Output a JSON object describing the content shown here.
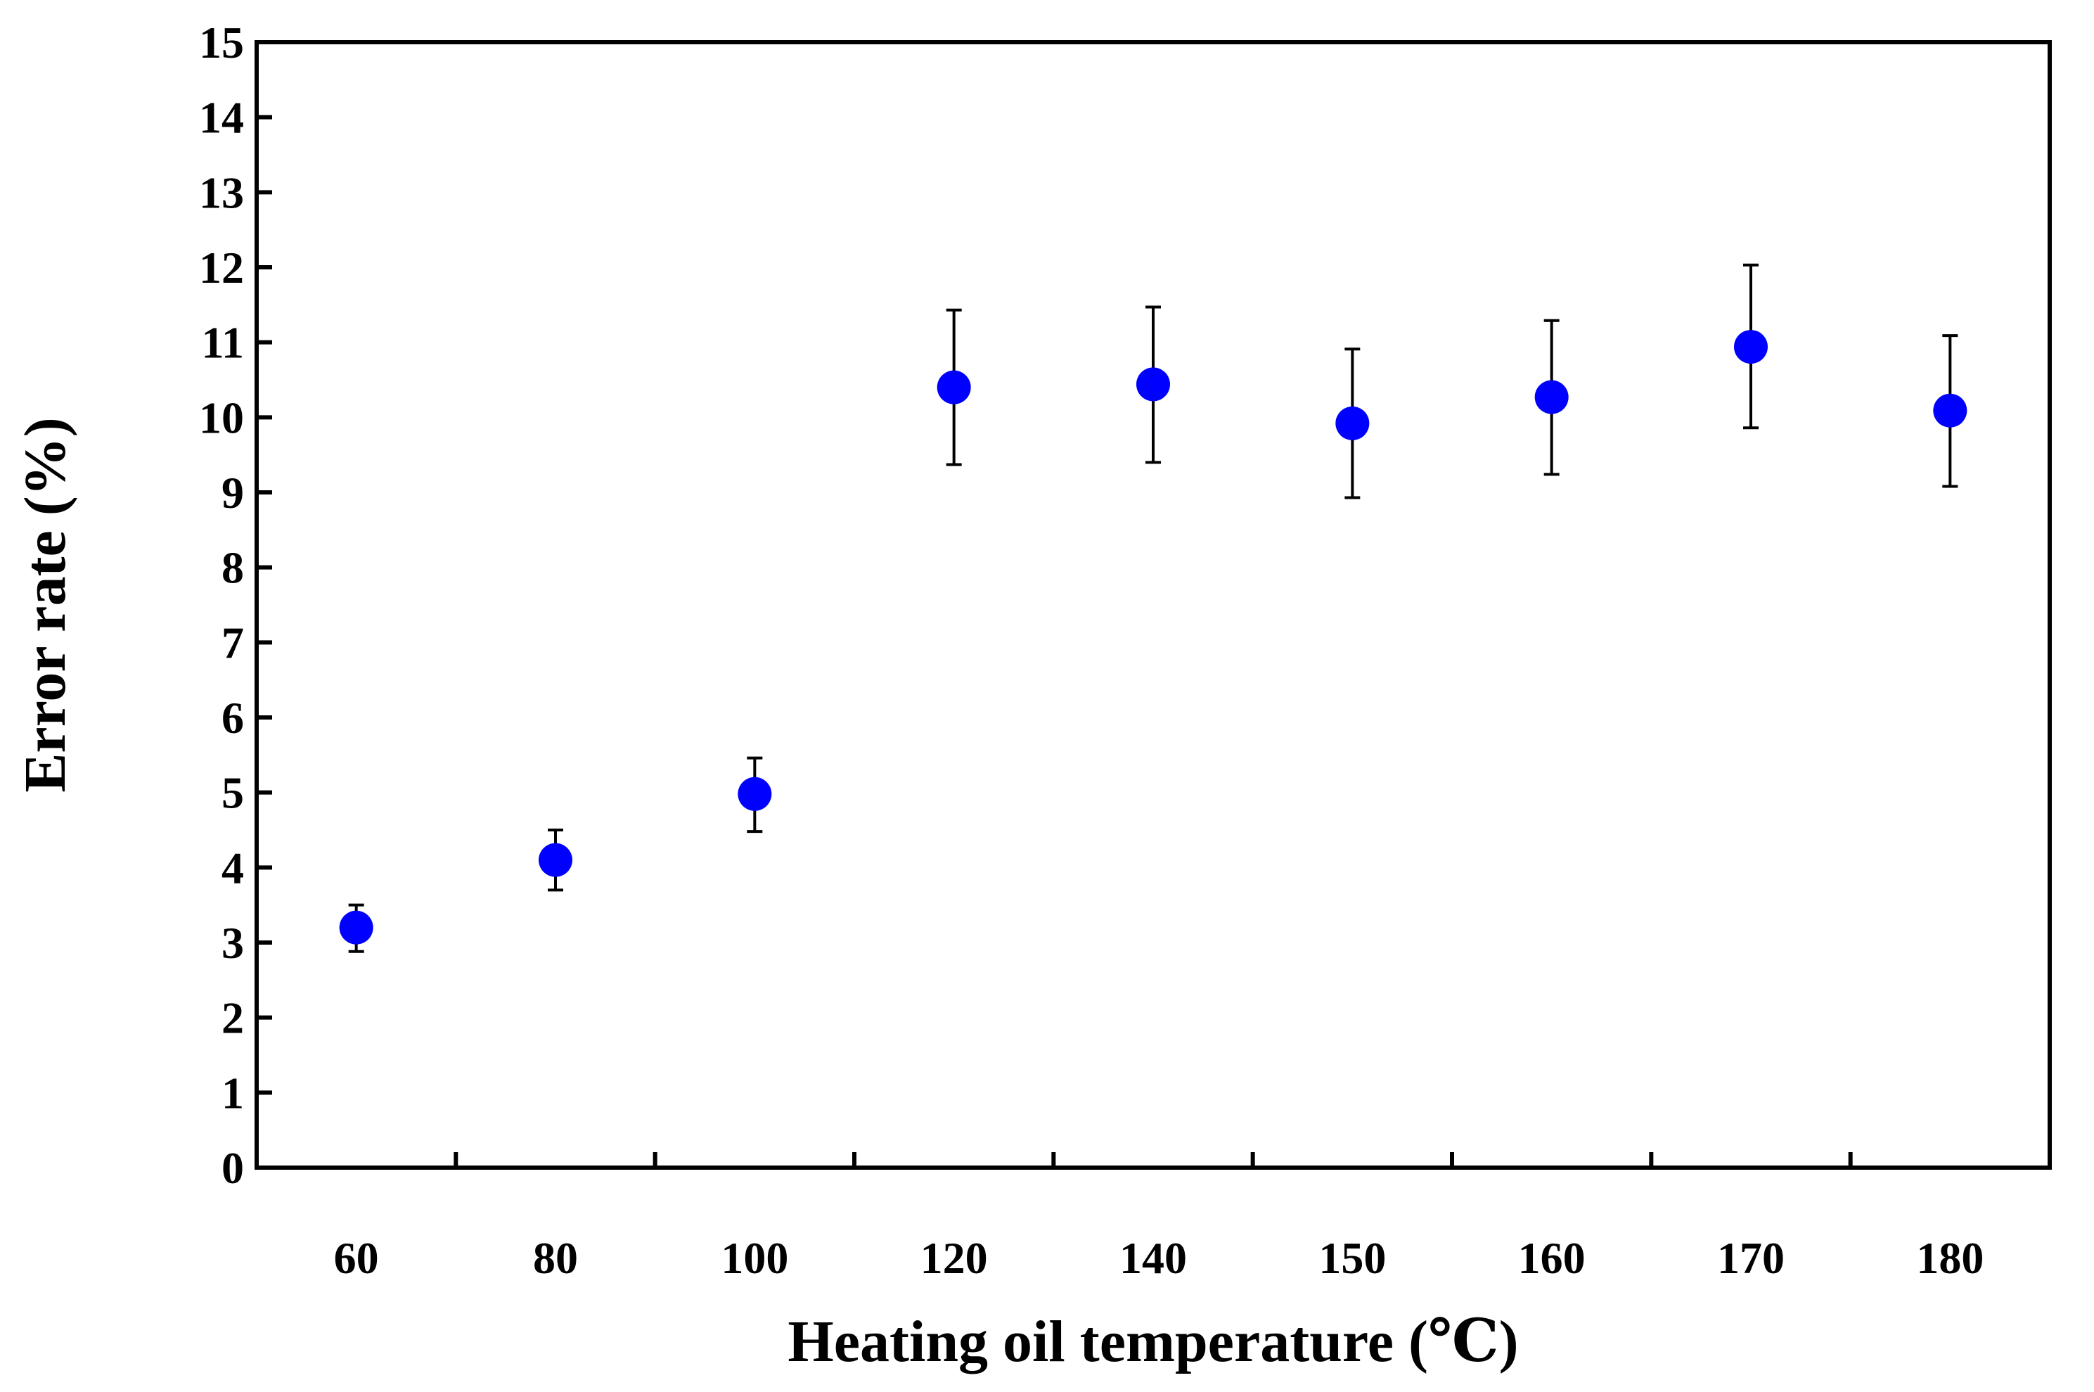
{
  "chart_data": {
    "type": "scatter",
    "title": "",
    "xlabel": "Heating oil temperature (℃)",
    "ylabel": "Error rate (%)",
    "categories": [
      "60",
      "80",
      "100",
      "120",
      "140",
      "150",
      "160",
      "170",
      "180"
    ],
    "values": [
      3.2,
      4.1,
      4.98,
      10.4,
      10.44,
      9.92,
      10.27,
      10.94,
      10.09
    ],
    "error_upper": [
      3.5,
      4.5,
      5.46,
      11.43,
      11.47,
      10.91,
      11.29,
      12.03,
      11.09
    ],
    "error_lower": [
      2.88,
      3.7,
      4.48,
      9.37,
      9.4,
      8.93,
      9.24,
      9.86,
      9.08
    ],
    "ylim": [
      0,
      15
    ],
    "yticks": [
      0,
      1,
      2,
      3,
      4,
      5,
      6,
      7,
      8,
      9,
      10,
      11,
      12,
      13,
      14,
      15
    ],
    "grid": false,
    "legend": "none",
    "marker_color": "#0000ff",
    "errorbar_color": "#000000"
  }
}
